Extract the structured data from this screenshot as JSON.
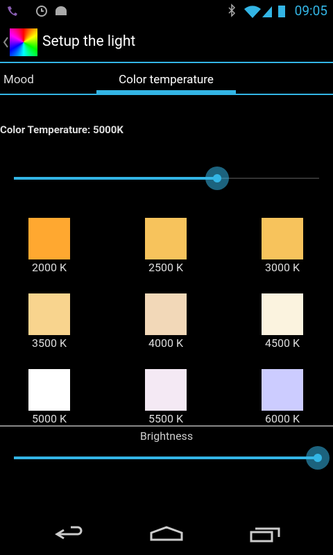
{
  "status_bar": {
    "time": "09:05"
  },
  "action_bar": {
    "title": "Setup the light"
  },
  "tabs": [
    "Mood",
    "Color temperature"
  ],
  "color_temperature_label": "Color Temperature: 5000K",
  "swatches": [
    {
      "label": "2000 K",
      "color": "#ffa830"
    },
    {
      "label": "2500 K",
      "color": "#f7c35c"
    },
    {
      "label": "3000 K",
      "color": "#f7c35c"
    },
    {
      "label": "3500 K",
      "color": "#f8d48e"
    },
    {
      "label": "4000 K",
      "color": "#f2d8b8"
    },
    {
      "label": "4500 K",
      "color": "#fbf3df"
    },
    {
      "label": "5000 K",
      "color": "#ffffff"
    },
    {
      "label": "5500 K",
      "color": "#f4e9f4"
    },
    {
      "label": "6000 K",
      "color": "#ccccff"
    }
  ],
  "brightness_label": "Brightness"
}
